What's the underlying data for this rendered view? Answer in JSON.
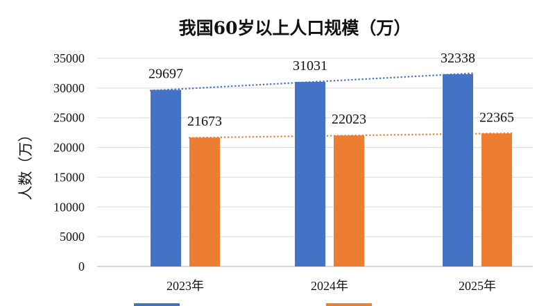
{
  "chart_data": {
    "type": "bar",
    "title": "我国60岁以上人口规模（万）",
    "ylabel": "人数（万）",
    "categories": [
      "2023年",
      "2024年",
      "2025年"
    ],
    "ylim": [
      0,
      35000
    ],
    "yticks": [
      0,
      5000,
      10000,
      15000,
      20000,
      25000,
      30000,
      35000
    ],
    "grid": true,
    "legend_position": "bottom",
    "series": [
      {
        "values": [
          29697,
          31031,
          32338
        ],
        "color": "#4472C4"
      },
      {
        "values": [
          21673,
          22023,
          22365
        ],
        "color": "#ED7D31"
      }
    ],
    "trendlines": [
      {
        "series_index": 0,
        "color": "#4472C4",
        "style": "dotted"
      },
      {
        "series_index": 1,
        "color": "#ED7D31",
        "style": "dotted"
      }
    ],
    "legend_entries": [
      {
        "text": "",
        "color": "#4472C4"
      },
      {
        "text": "",
        "color": "#ED7D31"
      }
    ]
  }
}
